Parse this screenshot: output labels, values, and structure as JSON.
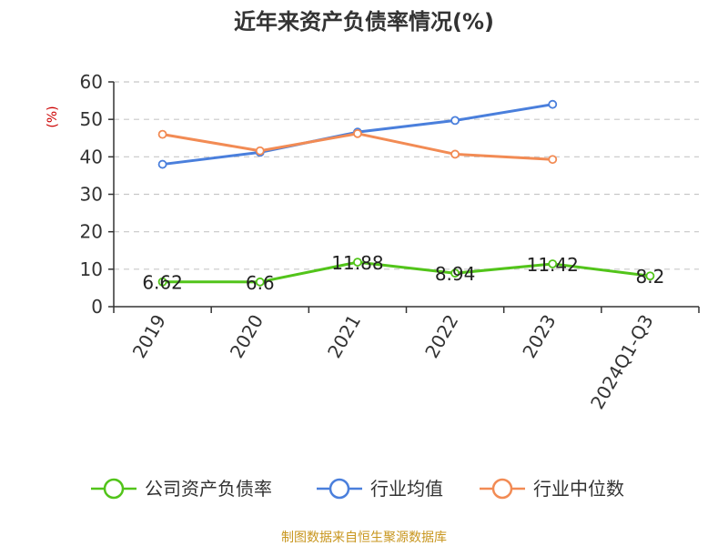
{
  "chart_data": {
    "type": "line",
    "title": "近年来资产负债率情况(%)",
    "ylabel": "(%)",
    "xlabel": "",
    "categories": [
      "2019",
      "2020",
      "2021",
      "2022",
      "2023",
      "2024Q1-Q3"
    ],
    "ylim": [
      0,
      60
    ],
    "yticks": [
      0,
      10,
      20,
      30,
      40,
      50,
      60
    ],
    "grid": true,
    "legend_position": "bottom",
    "series": [
      {
        "name": "公司资产负债率",
        "color": "#52c41a",
        "values": [
          6.62,
          6.6,
          11.88,
          8.94,
          11.42,
          8.2
        ],
        "labels": [
          "6.62",
          "6.6",
          "11.88",
          "8.94",
          "11.42",
          "8.2"
        ]
      },
      {
        "name": "行业均值",
        "color": "#4a7fdc",
        "values": [
          38.0,
          41.2,
          46.6,
          49.7,
          54.0,
          null
        ]
      },
      {
        "name": "行业中位数",
        "color": "#f28b54",
        "values": [
          46.0,
          41.6,
          46.2,
          40.7,
          39.3,
          null
        ]
      }
    ]
  },
  "source": "制图数据来自恒生聚源数据库"
}
